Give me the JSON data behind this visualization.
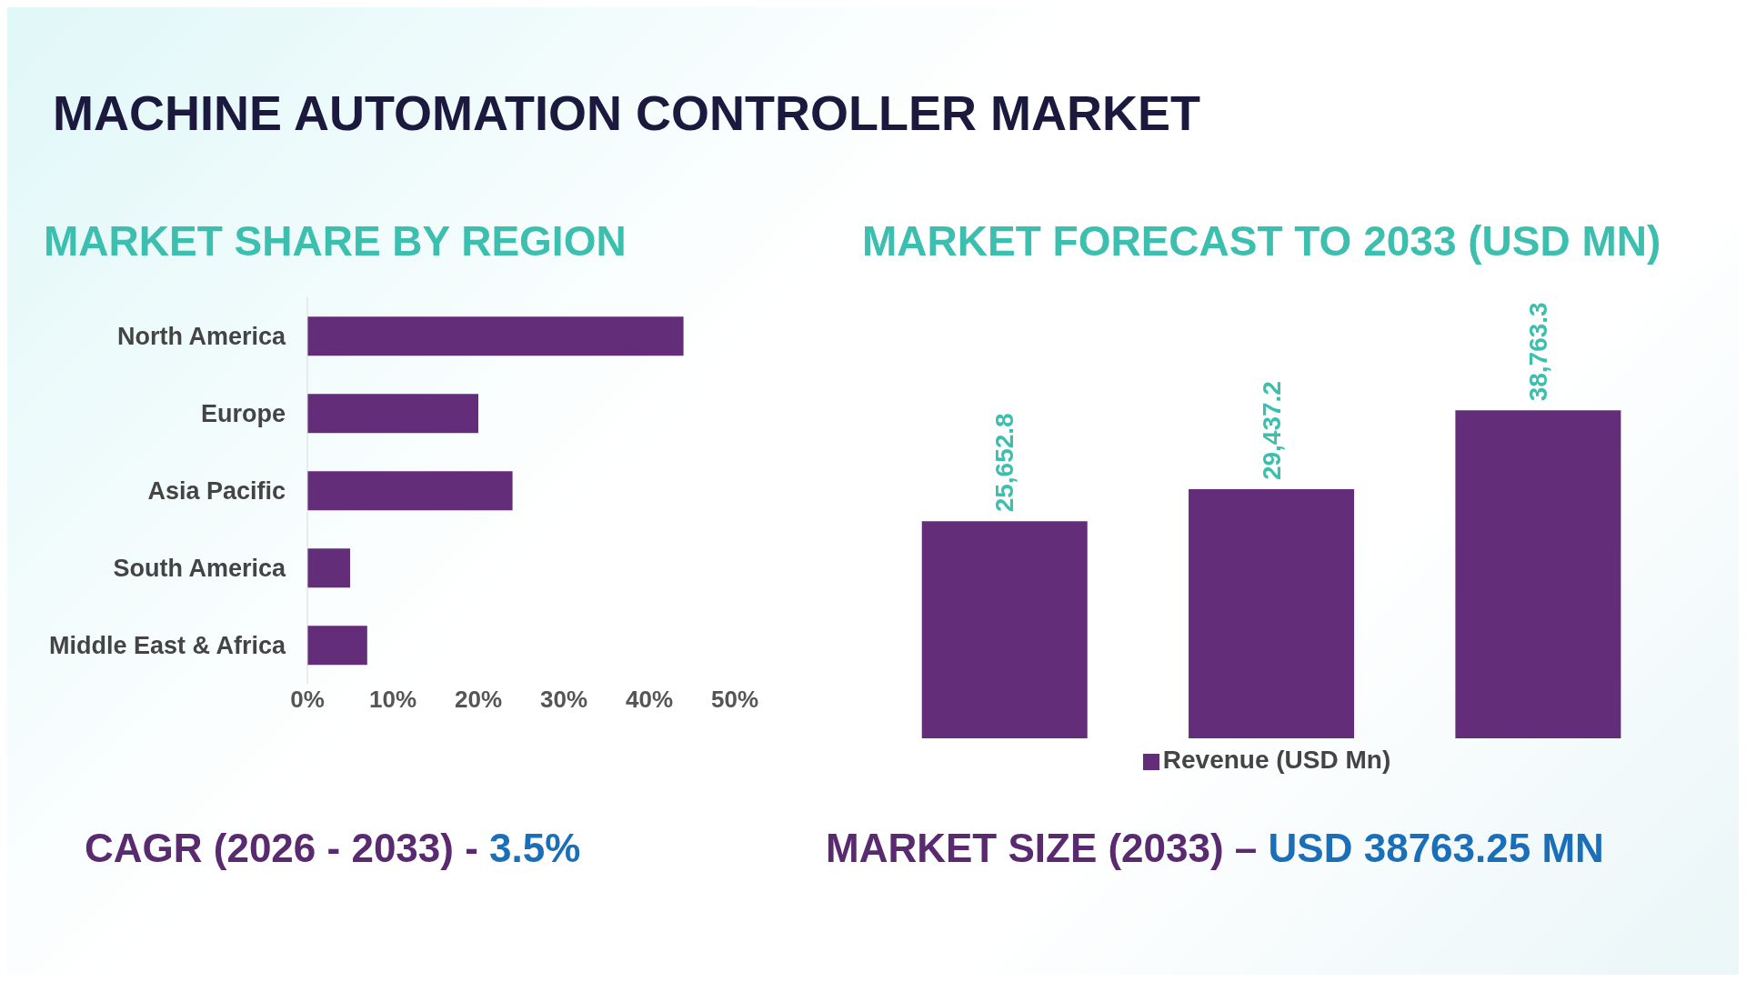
{
  "chart_data": [
    {
      "type": "other",
      "title": "MACHINE AUTOMATION CONTROLLER MARKET"
    },
    {
      "type": "bar",
      "orientation": "horizontal",
      "title": "MARKET SHARE BY REGION",
      "categories": [
        "North America",
        "Europe",
        "Asia Pacific",
        "South America",
        "Middle East & Africa"
      ],
      "values": [
        44,
        20,
        24,
        5,
        7
      ],
      "color": "#642d7a",
      "xlim": [
        0,
        50
      ],
      "xticks": [
        {
          "value": 0,
          "label": "0%"
        },
        {
          "value": 10,
          "label": "10%"
        },
        {
          "value": 20,
          "label": "20%"
        },
        {
          "value": 30,
          "label": "30%"
        },
        {
          "value": 40,
          "label": "40%"
        },
        {
          "value": 50,
          "label": "50%"
        }
      ],
      "annotations": [
        "CAGR (2026 - 2033) -",
        "3.5%"
      ]
    },
    {
      "type": "bar",
      "title": "MARKET FORECAST TO 2033 (USD MN)",
      "categories": [
        null,
        null,
        null
      ],
      "tick_labels": false,
      "legend": "bottom",
      "annotations": [
        "MARKET SIZE (2033) –",
        "USD 38763.25 MN"
      ],
      "series": [
        {
          "name": "Revenue (USD Mn)",
          "color": "#642d7a",
          "values": [
            25652.8,
            29437.2,
            38763.3
          ],
          "value_labels": [
            "25,652.8",
            "29,437.2",
            "38,763.3"
          ]
        }
      ]
    }
  ]
}
